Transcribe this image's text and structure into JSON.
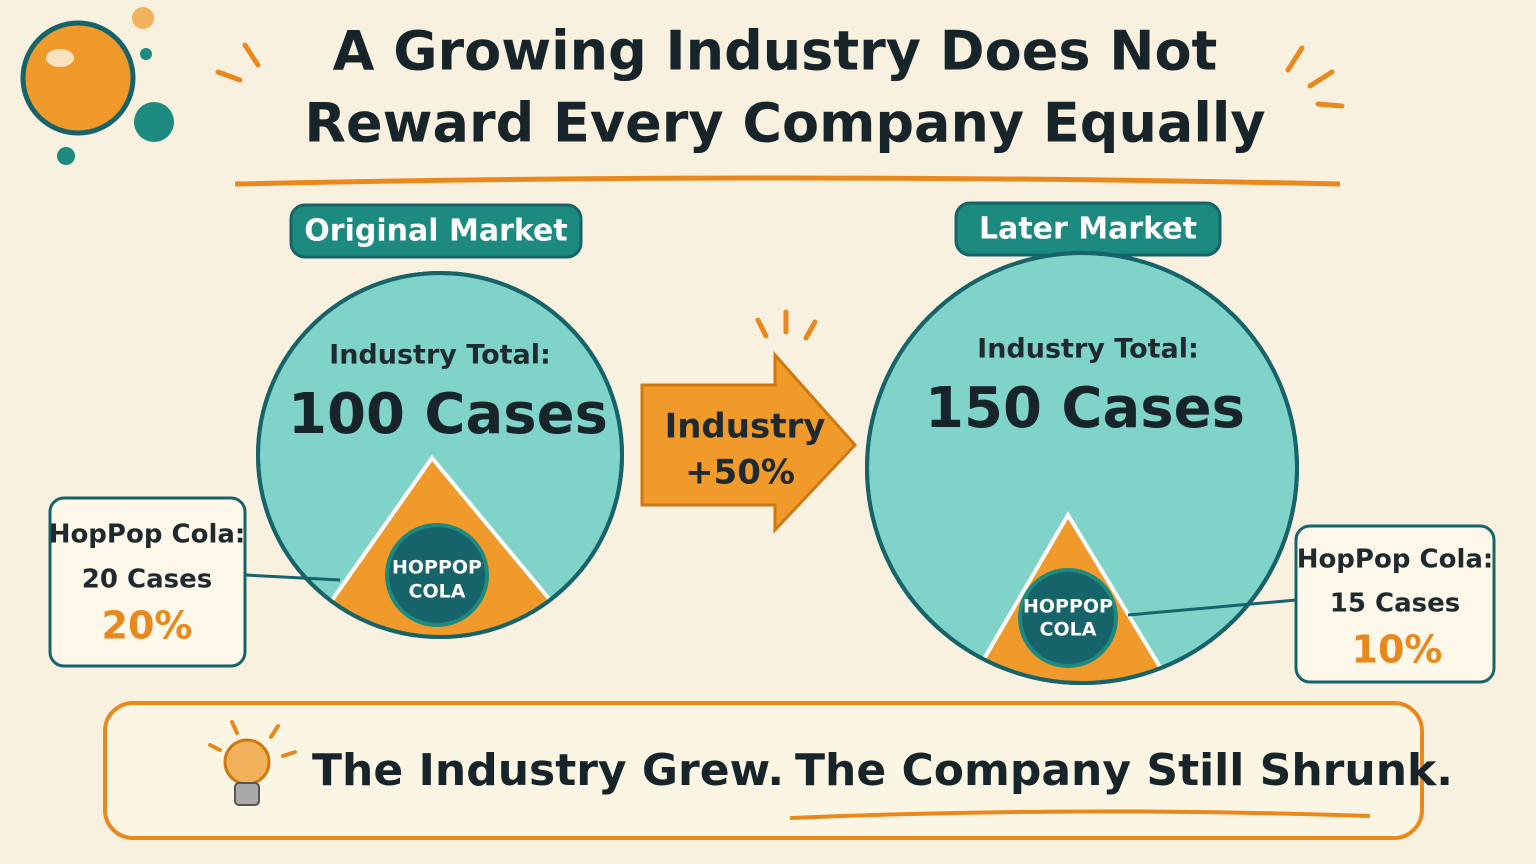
{
  "header": {
    "title_lines": [
      "A Growing Industry Does Not",
      "Reward Every Company Equally"
    ]
  },
  "original_market": {
    "label": "Original Market",
    "total_label": "Industry Total:",
    "total": "100 Cases",
    "logo": [
      "HOPPOP",
      "COLA"
    ],
    "callout": {
      "name": "HopPop Cola:",
      "cases": "20 Cases",
      "share": "20%"
    }
  },
  "arrow": {
    "lines": [
      "Industry",
      "+50%"
    ]
  },
  "later_market": {
    "label": "Later Market",
    "total_label": "Industry Total:",
    "total": "150 Cases",
    "logo": [
      "HOPPOP",
      "COLA"
    ],
    "callout": {
      "name": "HopPop Cola:",
      "cases": "15 Cases",
      "share": "10%"
    }
  },
  "takeaway": {
    "parts": [
      "The Industry Grew.",
      "The Company Still Shrunk."
    ]
  }
}
